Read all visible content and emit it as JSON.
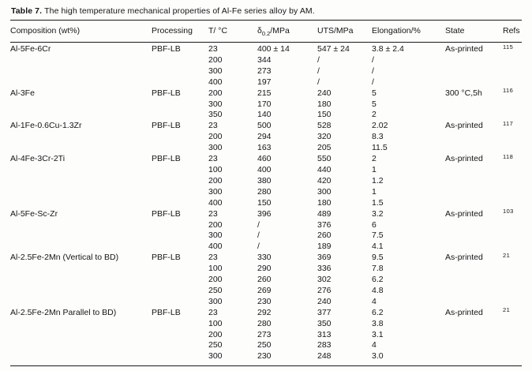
{
  "title": {
    "label": "Table 7.",
    "text": "The high temperature mechanical properties of Al-Fe series alloy by AM."
  },
  "table": {
    "columns": [
      {
        "label": "Composition (wt%)"
      },
      {
        "label": "Processing"
      },
      {
        "label": "T/ °C"
      },
      {
        "symbol": "δ",
        "sub": "0.2",
        "suffix": "/MPa"
      },
      {
        "label": "UTS/MPa"
      },
      {
        "label": "Elongation/%"
      },
      {
        "label": "State"
      },
      {
        "label": "Refs"
      }
    ],
    "groups": [
      {
        "composition": "Al-5Fe-6Cr",
        "processing": "PBF-LB",
        "state": "As-printed",
        "ref": "115",
        "rows": [
          [
            "23",
            "400 ± 14",
            "547 ± 24",
            "3.8 ± 2.4"
          ],
          [
            "200",
            "344",
            "/",
            "/"
          ],
          [
            "300",
            "273",
            "/",
            "/"
          ],
          [
            "400",
            "197",
            "/",
            "/"
          ]
        ]
      },
      {
        "composition": "Al-3Fe",
        "processing": "PBF-LB",
        "state": "300 °C,5h",
        "ref": "116",
        "rows": [
          [
            "200",
            "215",
            "240",
            "5"
          ],
          [
            "300",
            "170",
            "180",
            "5"
          ],
          [
            "350",
            "140",
            "150",
            "2"
          ]
        ]
      },
      {
        "composition": "Al-1Fe-0.6Cu-1.3Zr",
        "processing": "PBF-LB",
        "state": "As-printed",
        "ref": "117",
        "rows": [
          [
            "23",
            "500",
            "528",
            "2.02"
          ],
          [
            "200",
            "294",
            "320",
            "8.3"
          ],
          [
            "300",
            "163",
            "205",
            "11.5"
          ]
        ]
      },
      {
        "composition": "Al-4Fe-3Cr-2Ti",
        "processing": "PBF-LB",
        "state": "As-printed",
        "ref": "118",
        "rows": [
          [
            "23",
            "460",
            "550",
            "2"
          ],
          [
            "100",
            "400",
            "440",
            "1"
          ],
          [
            "200",
            "380",
            "420",
            "1.2"
          ],
          [
            "300",
            "280",
            "300",
            "1"
          ],
          [
            "400",
            "150",
            "180",
            "1.5"
          ]
        ]
      },
      {
        "composition": "Al-5Fe-Sc-Zr",
        "processing": "PBF-LB",
        "state": "As-printed",
        "ref": "103",
        "rows": [
          [
            "23",
            "396",
            "489",
            "3.2"
          ],
          [
            "200",
            "/",
            "376",
            "6"
          ],
          [
            "300",
            "/",
            "260",
            "7.5"
          ],
          [
            "400",
            "/",
            "189",
            "4.1"
          ]
        ]
      },
      {
        "composition": "Al-2.5Fe-2Mn (Vertical to BD)",
        "processing": "PBF-LB",
        "state": "As-printed",
        "ref": "21",
        "rows": [
          [
            "23",
            "330",
            "369",
            "9.5"
          ],
          [
            "100",
            "290",
            "336",
            "7.8"
          ],
          [
            "200",
            "260",
            "302",
            "6.2"
          ],
          [
            "250",
            "269",
            "276",
            "4.8"
          ],
          [
            "300",
            "230",
            "240",
            "4"
          ]
        ]
      },
      {
        "composition": "Al-2.5Fe-2Mn Parallel to BD)",
        "processing": "PBF-LB",
        "state": "As-printed",
        "ref": "21",
        "rows": [
          [
            "23",
            "292",
            "377",
            "6.2"
          ],
          [
            "100",
            "280",
            "350",
            "3.8"
          ],
          [
            "200",
            "273",
            "313",
            "3.1"
          ],
          [
            "250",
            "250",
            "283",
            "4"
          ],
          [
            "300",
            "230",
            "248",
            "3.0"
          ]
        ]
      }
    ]
  }
}
